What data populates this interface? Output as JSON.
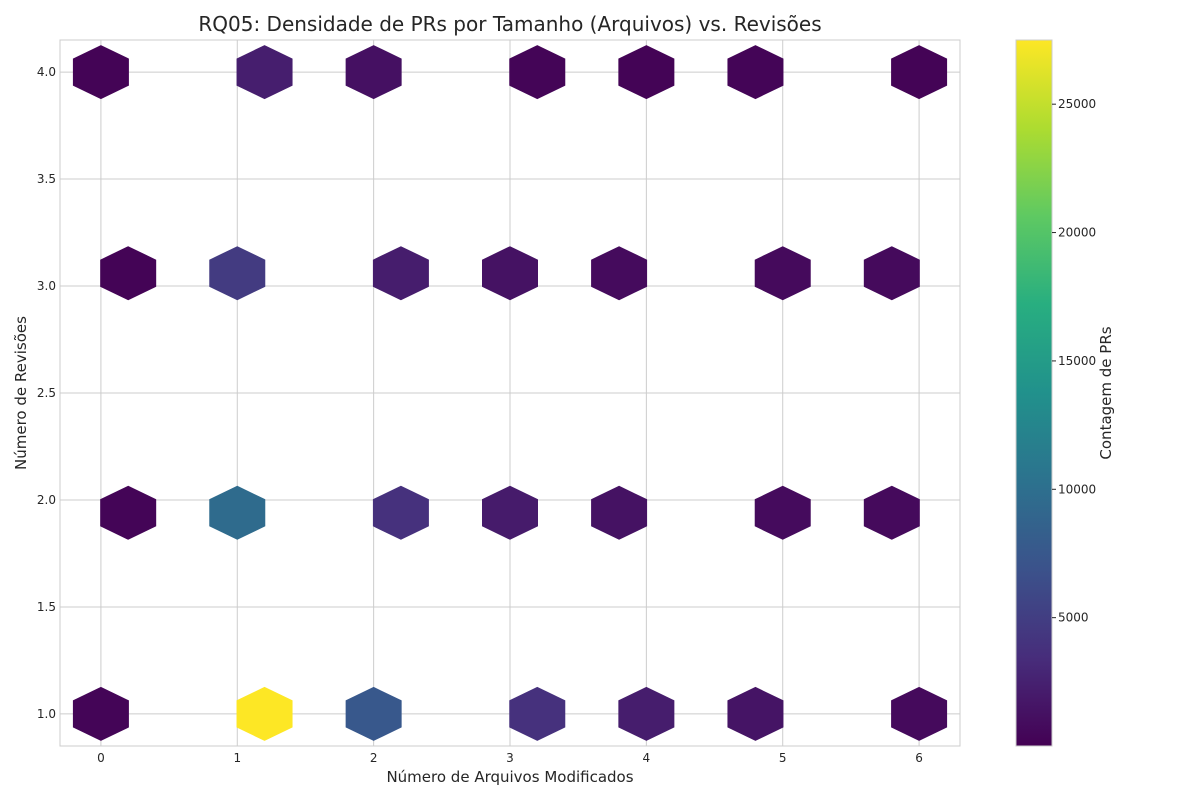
{
  "chart_data": {
    "type": "heatmap",
    "subtype": "hexbin",
    "title": "RQ05: Densidade de PRs por Tamanho (Arquivos) vs. Revisões",
    "xlabel": "Número de Arquivos Modificados",
    "ylabel": "Número de Revisões",
    "xlim": [
      -0.3,
      6.3
    ],
    "ylim": [
      0.85,
      4.15
    ],
    "x_ticks": [
      "0",
      "1",
      "2",
      "3",
      "4",
      "5",
      "6"
    ],
    "y_ticks": [
      "1.0",
      "1.5",
      "2.0",
      "2.5",
      "3.0",
      "3.5",
      "4.0"
    ],
    "grid": true,
    "colormap": "viridis",
    "colorbar": {
      "label": "Contagem de PRs",
      "range": [
        1,
        27500
      ],
      "ticks": [
        "5000",
        "10000",
        "15000",
        "20000",
        "25000"
      ]
    },
    "bins": [
      {
        "x": 0.0,
        "y": 4.0,
        "count": 200
      },
      {
        "x": 1.2,
        "y": 4.0,
        "count": 2300
      },
      {
        "x": 2.0,
        "y": 4.0,
        "count": 1200
      },
      {
        "x": 3.2,
        "y": 4.0,
        "count": 300
      },
      {
        "x": 4.0,
        "y": 4.0,
        "count": 200
      },
      {
        "x": 4.8,
        "y": 4.0,
        "count": 300
      },
      {
        "x": 6.0,
        "y": 4.0,
        "count": 200
      },
      {
        "x": 0.2,
        "y": 3.06,
        "count": 200
      },
      {
        "x": 1.0,
        "y": 3.06,
        "count": 4700
      },
      {
        "x": 2.2,
        "y": 3.06,
        "count": 2200
      },
      {
        "x": 3.0,
        "y": 3.06,
        "count": 1300
      },
      {
        "x": 3.8,
        "y": 3.06,
        "count": 800
      },
      {
        "x": 5.0,
        "y": 3.06,
        "count": 700
      },
      {
        "x": 5.8,
        "y": 3.06,
        "count": 700
      },
      {
        "x": 0.2,
        "y": 1.94,
        "count": 300
      },
      {
        "x": 1.0,
        "y": 1.94,
        "count": 9600
      },
      {
        "x": 2.2,
        "y": 1.94,
        "count": 3800
      },
      {
        "x": 3.0,
        "y": 1.94,
        "count": 2000
      },
      {
        "x": 3.8,
        "y": 1.94,
        "count": 1300
      },
      {
        "x": 5.0,
        "y": 1.94,
        "count": 800
      },
      {
        "x": 5.8,
        "y": 1.94,
        "count": 700
      },
      {
        "x": 0.0,
        "y": 1.0,
        "count": 300
      },
      {
        "x": 1.2,
        "y": 1.0,
        "count": 27500
      },
      {
        "x": 2.0,
        "y": 1.0,
        "count": 7500
      },
      {
        "x": 3.2,
        "y": 1.0,
        "count": 3800
      },
      {
        "x": 4.0,
        "y": 1.0,
        "count": 2200
      },
      {
        "x": 4.8,
        "y": 1.0,
        "count": 1500
      },
      {
        "x": 6.0,
        "y": 1.0,
        "count": 700
      }
    ]
  }
}
